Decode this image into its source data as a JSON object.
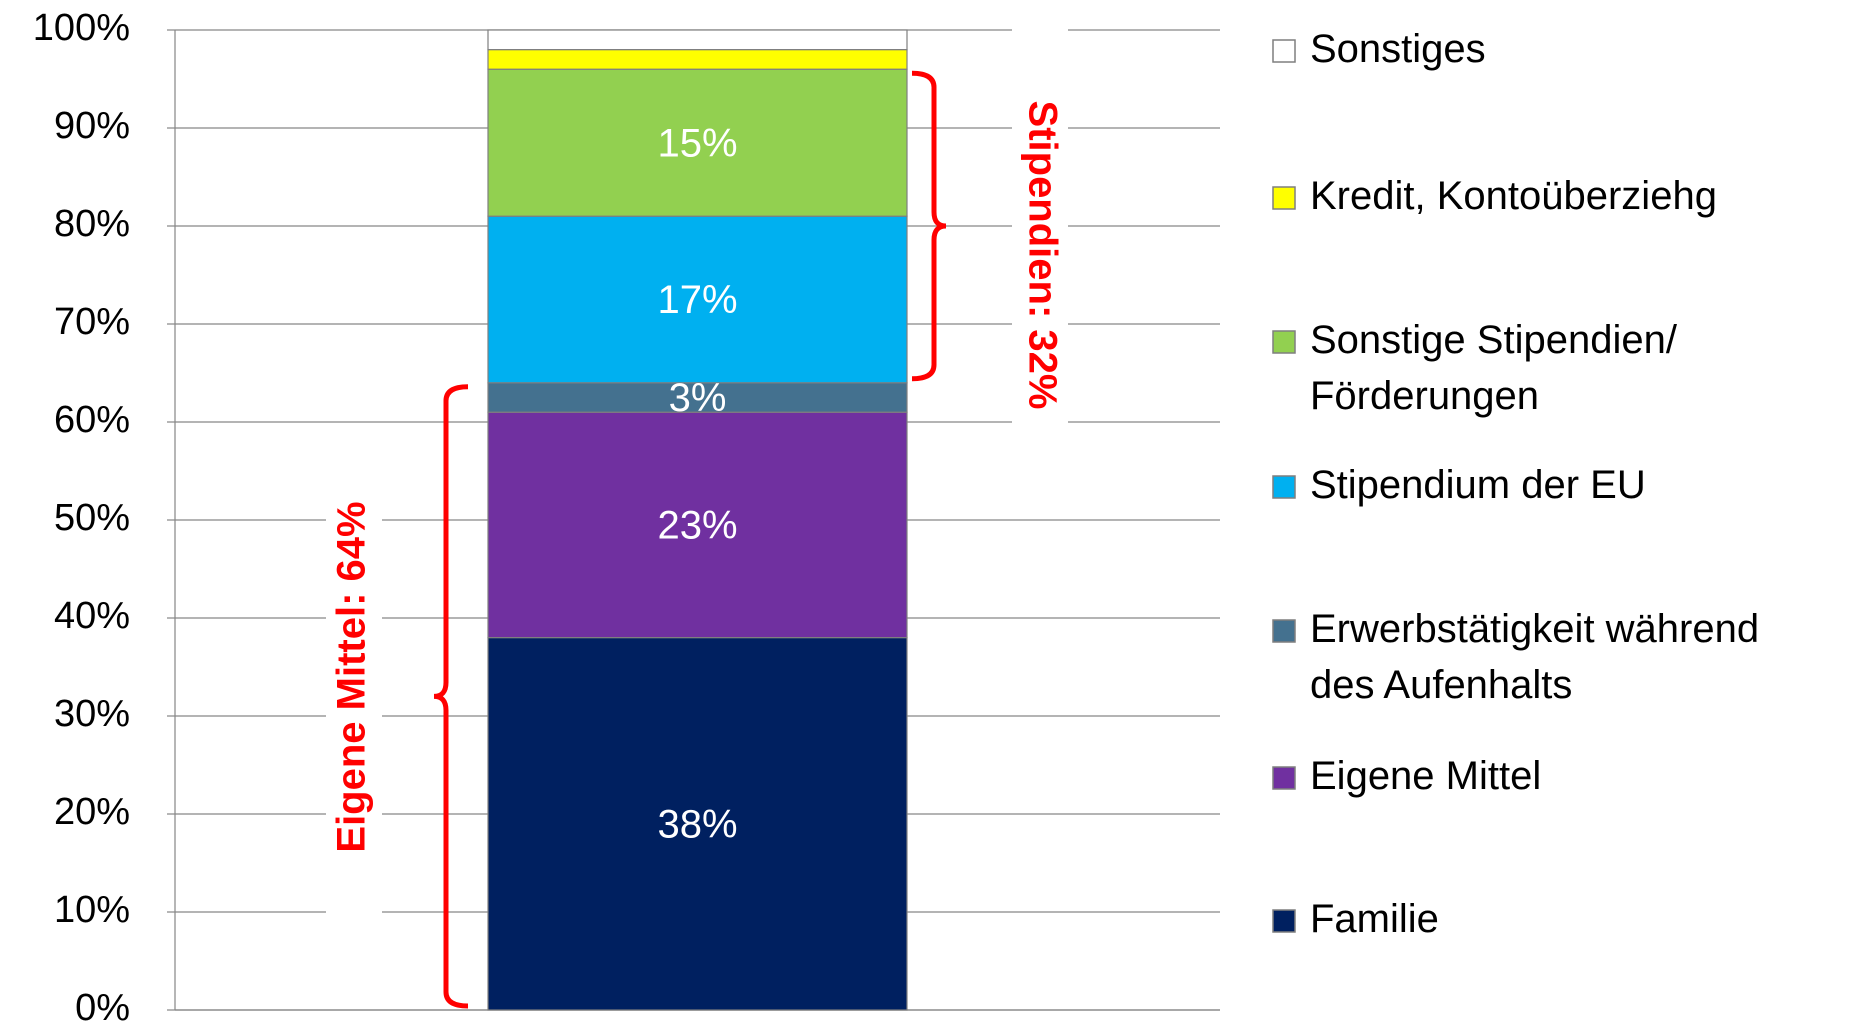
{
  "chart_data": {
    "type": "stacked-bar",
    "categories": [
      null
    ],
    "series": [
      {
        "name": "Familie",
        "color": "#002060",
        "values": [
          38
        ],
        "value_labels": [
          "38%"
        ]
      },
      {
        "name": "Eigene Mittel",
        "color": "#7030a0",
        "values": [
          23
        ],
        "value_labels": [
          "23%"
        ]
      },
      {
        "name": "Erwerbstätigkeit während\ndes Aufenhalts",
        "color": "#44718f",
        "values": [
          3
        ],
        "value_labels": [
          "3%"
        ]
      },
      {
        "name": "Stipendium der EU",
        "color": "#00b0f0",
        "values": [
          17
        ],
        "value_labels": [
          "17%"
        ]
      },
      {
        "name": "Sonstige Stipendien/\nFörderungen",
        "color": "#92d050",
        "values": [
          15
        ],
        "value_labels": [
          "15%"
        ]
      },
      {
        "name": "Kredit, Kontoüberziehg",
        "color": "#ffff00",
        "values": [
          2
        ]
      },
      {
        "name": "Sonstiges",
        "color": "#ffffff",
        "values": [
          2
        ]
      }
    ],
    "annotations": [
      {
        "text": "Eigene Mittel: 64%",
        "series": [
          0,
          1,
          2
        ]
      },
      {
        "text": "Stipendien: 32%",
        "series": [
          3,
          4
        ]
      }
    ],
    "ylim": [
      0,
      100
    ],
    "yticks": [
      {
        "value": 0,
        "label": "0%"
      },
      {
        "value": 10,
        "label": "10%"
      },
      {
        "value": 20,
        "label": "20%"
      },
      {
        "value": 30,
        "label": "30%"
      },
      {
        "value": 40,
        "label": "40%"
      },
      {
        "value": 50,
        "label": "50%"
      },
      {
        "value": 60,
        "label": "60%"
      },
      {
        "value": 70,
        "label": "70%"
      },
      {
        "value": 80,
        "label": "80%"
      },
      {
        "value": 90,
        "label": "90%"
      },
      {
        "value": 100,
        "label": "100%"
      }
    ],
    "grid": true,
    "legend": "right",
    "annotation_color": "#ff0000"
  }
}
